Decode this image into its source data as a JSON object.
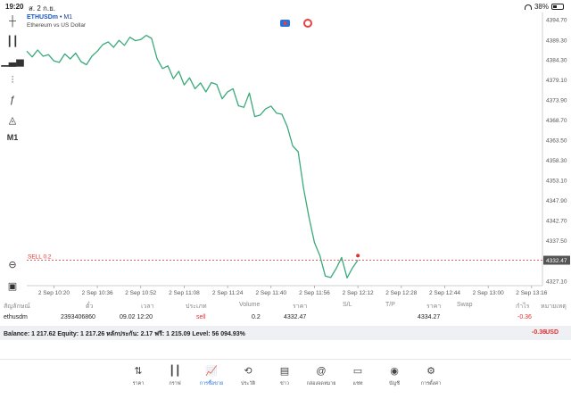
{
  "status_bar": {
    "time": "19:20",
    "date": "ส. 2 ก.ย.",
    "battery": "38%"
  },
  "toolbar": {
    "timeframe": "M1"
  },
  "chart_header": {
    "symbol": "ETHUSDm",
    "timeframe_suffix": " • M1",
    "description": "Ethereum vs US Dollar"
  },
  "chart_data": {
    "type": "line",
    "series": [
      {
        "color": "#3aaa7a",
        "x": [
          "10:10",
          "10:12",
          "10:14",
          "10:16",
          "10:18",
          "10:20",
          "10:22",
          "10:24",
          "10:26",
          "10:28",
          "10:30",
          "10:32",
          "10:34",
          "10:36",
          "10:38",
          "10:40",
          "10:42",
          "10:44",
          "10:46",
          "10:48",
          "10:50",
          "10:52",
          "10:54",
          "10:56",
          "10:58",
          "11:00",
          "11:02",
          "11:04",
          "11:06",
          "11:08",
          "11:10",
          "11:12",
          "11:14",
          "11:16",
          "11:18",
          "11:20",
          "11:22",
          "11:24",
          "11:26",
          "11:28",
          "11:30",
          "11:32",
          "11:34",
          "11:36",
          "11:38",
          "11:40",
          "11:42",
          "11:44",
          "11:46",
          "11:48",
          "11:50",
          "11:52",
          "11:54",
          "11:56",
          "11:58",
          "12:00",
          "12:02",
          "12:04",
          "12:06",
          "12:08",
          "12:10",
          "12:12"
        ],
        "values": [
          4386.5,
          4385.0,
          4386.8,
          4385.2,
          4385.6,
          4384.0,
          4383.6,
          4385.8,
          4384.5,
          4386.0,
          4383.8,
          4383.0,
          4385.2,
          4386.5,
          4388.2,
          4388.9,
          4387.5,
          4389.3,
          4388.0,
          4390.1,
          4389.2,
          4389.5,
          4390.6,
          4389.8,
          4384.6,
          4382.0,
          4382.7,
          4379.4,
          4381.3,
          4377.8,
          4379.6,
          4376.8,
          4378.3,
          4376.0,
          4378.4,
          4377.9,
          4374.2,
          4376.0,
          4376.8,
          4372.4,
          4372.0,
          4375.7,
          4369.6,
          4370.0,
          4371.6,
          4372.3,
          4370.5,
          4370.2,
          4367.0,
          4362.0,
          4360.5,
          4351.0,
          4343.5,
          4337.0,
          4333.7,
          4328.4,
          4328.0,
          4330.3,
          4333.2,
          4327.9,
          4330.5,
          4332.5
        ]
      }
    ],
    "ylim": [
      4325.9,
      4396.5
    ],
    "y_ticks": [
      "4394.70",
      "4389.30",
      "4384.30",
      "4379.10",
      "4373.90",
      "4368.70",
      "4363.50",
      "4358.30",
      "4353.10",
      "4347.90",
      "4342.70",
      "4337.50",
      "4332.47",
      "4327.10"
    ],
    "y_tick_values": [
      4394.7,
      4389.3,
      4384.3,
      4379.1,
      4373.9,
      4368.7,
      4363.5,
      4358.3,
      4353.1,
      4347.9,
      4342.7,
      4337.5,
      4332.47,
      4327.1
    ],
    "x_ticks": [
      "2 Sep 10:20",
      "2 Sep 10:36",
      "2 Sep 10:52",
      "2 Sep 11:08",
      "2 Sep 11:24",
      "2 Sep 11:40",
      "2 Sep 11:56",
      "2 Sep 12:12",
      "2 Sep 12:28",
      "2 Sep 12:44",
      "2 Sep 13:00",
      "2 Sep 13:16"
    ],
    "position_line": {
      "label": "SELL 0.2",
      "value": 4332.47,
      "color": "#e03030"
    },
    "current_price": "4332.47",
    "grid": false
  },
  "table": {
    "headers": [
      "สัญลักษณ์",
      "ตั๋ว",
      "เวลา",
      "ประเภท",
      "Volume",
      "ราคา",
      "S/L",
      "T/P",
      "ราคา",
      "Swap",
      "กำไร",
      "หมายเหตุ"
    ],
    "row": {
      "symbol": "ethusdm",
      "ticket": "2393406860",
      "time": "09.02 12:20",
      "type": "sell",
      "volume": "0.2",
      "price": "4332.47",
      "sl": "",
      "tp": "",
      "current": "4334.27",
      "swap": "",
      "profit": "-0.36",
      "comment": ""
    }
  },
  "balance_bar": {
    "text": "Balance: 1 217.62 Equity: 1 217.26 หลักประกัน: 2.17 ฟรี: 1 215.09 Level: 56 094.93%",
    "profit": "-0.36",
    "currency": "USD"
  },
  "bottom_nav": [
    {
      "label": "ราคา",
      "icon": "arrows-updown-icon",
      "glyph": "⇅"
    },
    {
      "label": "กราฟ",
      "icon": "candlestick-icon",
      "glyph": "┃┃"
    },
    {
      "label": "การซื้อขาย",
      "icon": "trade-chart-icon",
      "glyph": "📈"
    },
    {
      "label": "ประวัติ",
      "icon": "history-icon",
      "glyph": "⟲"
    },
    {
      "label": "ข่าว",
      "icon": "news-icon",
      "glyph": "▤"
    },
    {
      "label": "กล่องจดหมาย",
      "icon": "mail-at-icon",
      "glyph": "@"
    },
    {
      "label": "แชท",
      "icon": "chat-icon",
      "glyph": "▭"
    },
    {
      "label": "บัญชี",
      "icon": "account-icon",
      "glyph": "◉"
    },
    {
      "label": "การตั้งค่า",
      "icon": "settings-gear-icon",
      "glyph": "⚙"
    }
  ],
  "active_nav_index": 2
}
